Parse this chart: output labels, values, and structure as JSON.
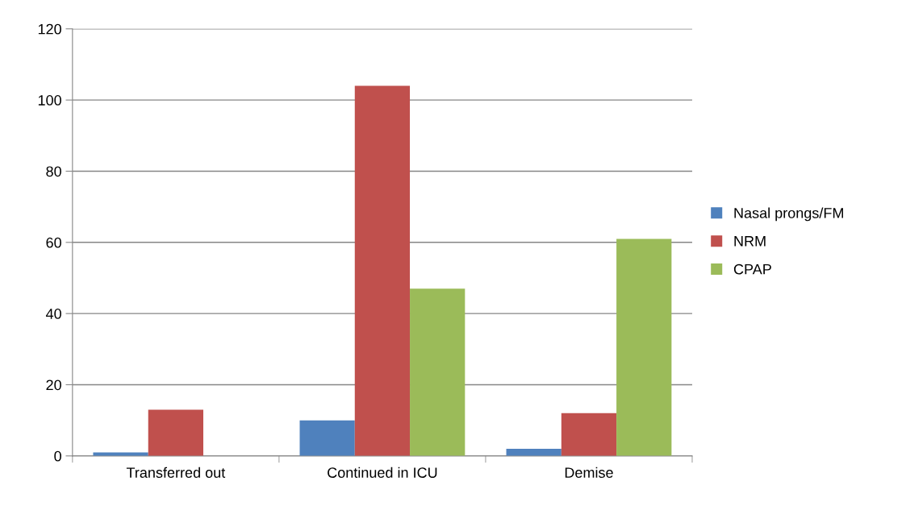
{
  "chart_data": {
    "type": "bar",
    "categories": [
      "Transferred out",
      "Continued in ICU",
      "Demise"
    ],
    "series": [
      {
        "name": "Nasal prongs/FM",
        "color": "#4f81bd",
        "values": [
          1,
          10,
          2
        ]
      },
      {
        "name": "NRM",
        "color": "#c0504d",
        "values": [
          13,
          104,
          12
        ]
      },
      {
        "name": "CPAP",
        "color": "#9bbb59",
        "values": [
          0,
          47,
          61
        ]
      }
    ],
    "ylim": [
      0,
      120
    ],
    "yticks": [
      0,
      20,
      40,
      60,
      80,
      100,
      120
    ],
    "grid": "y",
    "legend": "right"
  }
}
